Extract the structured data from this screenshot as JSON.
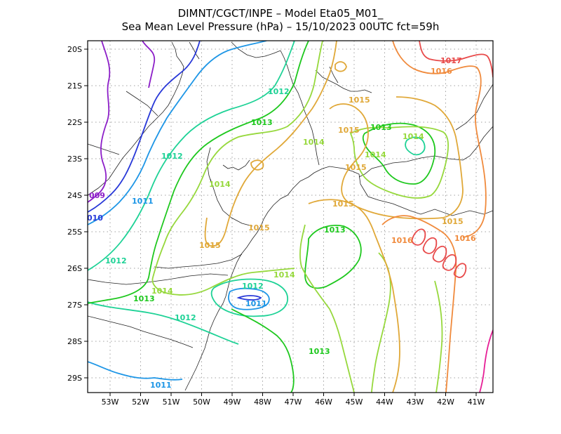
{
  "title_line1": "DIMNT/CGCT/INPE –  Model Eta05_M01_",
  "title_line2": "Sea Mean Level Pressure (hPa) – 15/10/2023 00UTC fct=59h",
  "lon_ticks": [
    "53W",
    "52W",
    "51W",
    "50W",
    "49W",
    "48W",
    "47W",
    "46W",
    "45W",
    "44W",
    "43W",
    "42W",
    "41W"
  ],
  "lat_ticks": [
    "20S",
    "21S",
    "22S",
    "23S",
    "24S",
    "25S",
    "26S",
    "27S",
    "28S",
    "29S"
  ],
  "contour_labels": [
    {
      "text": "1017",
      "color": "#e84a4a"
    },
    {
      "text": "1016",
      "color": "#f08a3c"
    },
    {
      "text": "1016",
      "color": "#f08a3c"
    },
    {
      "text": "1016",
      "color": "#f08a3c"
    },
    {
      "text": "1015",
      "color": "#e0a838"
    },
    {
      "text": "1015",
      "color": "#e0a838"
    },
    {
      "text": "1015",
      "color": "#e0a838"
    },
    {
      "text": "1015",
      "color": "#e0a838"
    },
    {
      "text": "1015",
      "color": "#e0a838"
    },
    {
      "text": "1015",
      "color": "#e0a838"
    },
    {
      "text": "1015",
      "color": "#e0a838"
    },
    {
      "text": "1014",
      "color": "#96d83c"
    },
    {
      "text": "1014",
      "color": "#96d83c"
    },
    {
      "text": "1014",
      "color": "#96d83c"
    },
    {
      "text": "1014",
      "color": "#96d83c"
    },
    {
      "text": "1014",
      "color": "#96d83c"
    },
    {
      "text": "1014",
      "color": "#96d83c"
    },
    {
      "text": "1013",
      "color": "#1ec81e"
    },
    {
      "text": "1013",
      "color": "#1ec81e"
    },
    {
      "text": "1013",
      "color": "#1ec81e"
    },
    {
      "text": "1013",
      "color": "#1ec81e"
    },
    {
      "text": "1013",
      "color": "#1ec81e"
    },
    {
      "text": "1012",
      "color": "#1ed296"
    },
    {
      "text": "1012",
      "color": "#1ed296"
    },
    {
      "text": "1012",
      "color": "#1ed296"
    },
    {
      "text": "1012",
      "color": "#1ed296"
    },
    {
      "text": "1012",
      "color": "#1ed296"
    },
    {
      "text": "1011",
      "color": "#1e96e6"
    },
    {
      "text": "1011",
      "color": "#1e96e6"
    },
    {
      "text": "1011",
      "color": "#1e96e6"
    },
    {
      "text": "010",
      "color": "#2838d8"
    },
    {
      "text": "009",
      "color": "#8c1ec8"
    }
  ],
  "colors": {
    "c1009": "#8c1ec8",
    "c1010": "#2838d8",
    "c1011": "#1e96e6",
    "c1012": "#1ed296",
    "c1013": "#1ec81e",
    "c1014": "#96d83c",
    "c1015": "#e0a838",
    "c1016": "#f08a3c",
    "c1017": "#e84a4a",
    "c1018": "#e61e96"
  }
}
